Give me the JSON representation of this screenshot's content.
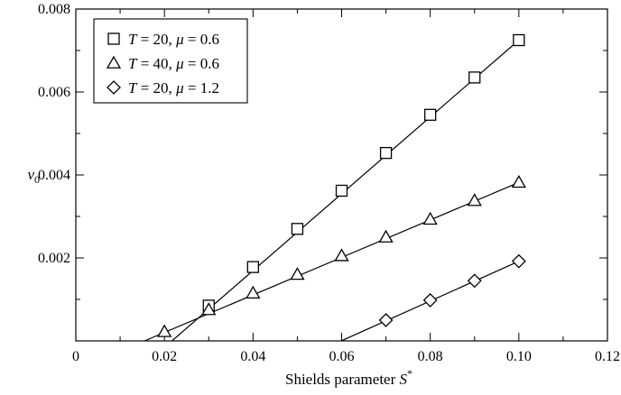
{
  "chart_data": {
    "type": "scatter",
    "xlabel": "Shields parameter",
    "xlabel_symbol": "S",
    "xlabel_sup": "*",
    "ylabel": "v",
    "ylabel_sub": "0",
    "xlim": [
      0,
      0.12
    ],
    "ylim": [
      0,
      0.008
    ],
    "x_ticks": [
      0,
      0.02,
      0.04,
      0.06,
      0.08,
      0.1,
      0.12
    ],
    "x_tick_labels": [
      "0",
      "0.02",
      "0.04",
      "0.06",
      "0.08",
      "0.10",
      "0.12"
    ],
    "y_ticks": [
      0,
      0.002,
      0.004,
      0.006,
      0.008
    ],
    "y_tick_labels": [
      "",
      "0.002",
      "0.004",
      "0.006",
      "0.008"
    ],
    "legend_position": "top-left",
    "grid": false,
    "series": [
      {
        "name": "T = 20, μ = 0.6",
        "label_parts": [
          "T",
          " = 20, ",
          "μ",
          " = 0.6"
        ],
        "marker": "square",
        "x": [
          0.03,
          0.04,
          0.05,
          0.06,
          0.07,
          0.08,
          0.09,
          0.1
        ],
        "y": [
          0.00085,
          0.00178,
          0.0027,
          0.00362,
          0.00453,
          0.00545,
          0.00635,
          0.00725
        ],
        "fit_line": [
          [
            0.0217,
            0.0
          ],
          [
            0.1,
            0.00725
          ]
        ]
      },
      {
        "name": "T = 40, μ = 0.6",
        "label_parts": [
          "T",
          " = 40, ",
          "μ",
          " = 0.6"
        ],
        "marker": "triangle",
        "x": [
          0.02,
          0.03,
          0.04,
          0.05,
          0.06,
          0.07,
          0.08,
          0.09,
          0.1
        ],
        "y": [
          0.00022,
          0.00075,
          0.00115,
          0.0016,
          0.00205,
          0.0025,
          0.00293,
          0.00338,
          0.00382
        ],
        "fit_line": [
          [
            0.0155,
            0.0
          ],
          [
            0.1,
            0.00382
          ]
        ]
      },
      {
        "name": "T = 20, μ = 1.2",
        "label_parts": [
          "T",
          " = 20, ",
          "μ",
          " = 1.2"
        ],
        "marker": "diamond",
        "x": [
          0.07,
          0.08,
          0.09,
          0.1
        ],
        "y": [
          0.0005,
          0.00098,
          0.00145,
          0.00192
        ],
        "fit_line": [
          [
            0.0599,
            0.0
          ],
          [
            0.1,
            0.00192
          ]
        ]
      }
    ]
  }
}
